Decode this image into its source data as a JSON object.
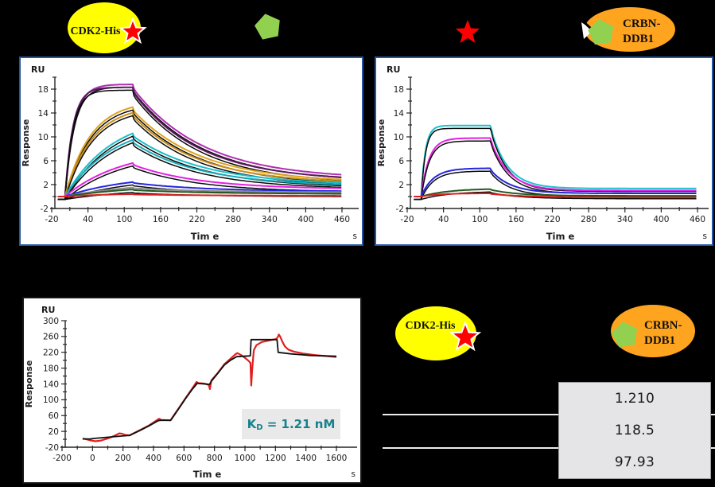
{
  "header": {
    "left_label": "CDK2-His",
    "right_line1": "CRBN-",
    "right_line2": "DDB1"
  },
  "footer": {
    "left_label": "CDK2-His",
    "right_line1": "CRBN-",
    "right_line2": "DDB1"
  },
  "kd": {
    "k": "K",
    "sub": "D",
    "rest": " = 1.21 nM"
  },
  "table": {
    "values": [
      "1.210",
      "118.5",
      "97.93"
    ]
  },
  "colors": {
    "ellipse_yellow": "#FFFF00",
    "ellipse_orange": "#FFA41E",
    "pentagon_green": "#92D050",
    "star_red": "#FF0000",
    "chart_border_blue": "#2456A4",
    "kd_teal": "#17828C",
    "table_gray": "#E5E4E6"
  },
  "chart_data": [
    {
      "id": "top-left",
      "type": "line",
      "description": "SPR multi-cycle sensorgram: analyte over CDK2-His surface, colored traces with black fits",
      "unit_label": "RU",
      "xlabel": "Tim e",
      "x_unit": "s",
      "ylabel": "Response",
      "xlim": [
        -20,
        460
      ],
      "ylim": [
        -2,
        20
      ],
      "xticks": [
        -20,
        40,
        100,
        160,
        220,
        280,
        340,
        400,
        460
      ],
      "xtick_minor": 30,
      "yticks": [
        -2,
        2,
        6,
        10,
        14,
        18
      ],
      "ytick_minor": 2,
      "t_on": 2,
      "t_off": 115,
      "series": [
        {
          "name": "conc-1a",
          "color": "#B02FB0",
          "model": "kinetic",
          "rmax": 18.8,
          "tau_on": 15,
          "drop": 0.7,
          "tau_off": 115,
          "end": 2.9,
          "fit": true
        },
        {
          "name": "conc-1b",
          "color": "#5A1A60",
          "model": "kinetic",
          "rmax": 18.3,
          "tau_on": 13,
          "drop": 0.9,
          "tau_off": 110,
          "end": 2.6,
          "fit": true
        },
        {
          "name": "conc-2a",
          "color": "#DFA321",
          "model": "kinetic",
          "rmax": 16.1,
          "tau_on": 42,
          "drop": 0.6,
          "tau_off": 112,
          "end": 2.3,
          "fit": true
        },
        {
          "name": "conc-2b",
          "color": "#C98F17",
          "model": "kinetic",
          "rmax": 15.3,
          "tau_on": 45,
          "drop": 0.6,
          "tau_off": 108,
          "end": 2.1,
          "fit": true
        },
        {
          "name": "conc-3a",
          "color": "#1CBECB",
          "model": "kinetic",
          "rmax": 13.9,
          "tau_on": 78,
          "drop": 0.5,
          "tau_off": 115,
          "end": 1.9,
          "fit": true
        },
        {
          "name": "conc-3b",
          "color": "#17ADBA",
          "model": "kinetic",
          "rmax": 12.6,
          "tau_on": 80,
          "drop": 0.5,
          "tau_off": 112,
          "end": 1.7,
          "fit": true
        },
        {
          "name": "conc-4",
          "color": "#E41FE4",
          "model": "kinetic",
          "rmax": 8.1,
          "tau_on": 95,
          "drop": 0.3,
          "tau_off": 110,
          "end": 1.2,
          "fit": true
        },
        {
          "name": "conc-5",
          "color": "#2525DE",
          "model": "kinetic",
          "rmax": 3.7,
          "tau_on": 105,
          "drop": 0.15,
          "tau_off": 115,
          "end": 0.85,
          "fit": true
        },
        {
          "name": "conc-6",
          "color": "#8C8C8C",
          "model": "kinetic",
          "rmax": 2.4,
          "tau_on": 115,
          "drop": 0.1,
          "tau_off": 120,
          "end": 0.7,
          "fit": false
        },
        {
          "name": "conc-7",
          "color": "#225A22",
          "model": "kinetic",
          "rmax": 2.0,
          "tau_on": 125,
          "drop": 0.1,
          "tau_off": 120,
          "end": 0.45,
          "fit": true
        },
        {
          "name": "conc-8",
          "color": "#DB2020",
          "model": "kinetic",
          "rmax": 0.5,
          "tau_on": 70,
          "drop": 0.05,
          "tau_off": 150,
          "end": 0.1,
          "fit": false
        }
      ]
    },
    {
      "id": "top-right",
      "type": "line",
      "description": "SPR multi-cycle sensorgram: analyte over CRBN-DDB1 surface, colored traces with black fits",
      "unit_label": "RU",
      "xlabel": "Tim e",
      "x_unit": "s",
      "ylabel": "Response",
      "xlim": [
        -20,
        460
      ],
      "ylim": [
        -2,
        20
      ],
      "xticks": [
        -20,
        40,
        100,
        160,
        220,
        280,
        340,
        400,
        460
      ],
      "xtick_minor": 30,
      "yticks": [
        -2,
        2,
        6,
        10,
        14,
        18
      ],
      "ytick_minor": 2,
      "t_on": 3,
      "t_off": 118,
      "series": [
        {
          "name": "conc-1",
          "color": "#1CC3CE",
          "model": "kinetic",
          "rmax": 11.9,
          "tau_on": 7,
          "drop": 0.4,
          "tau_off": 28,
          "end": 1.35,
          "fit": true
        },
        {
          "name": "conc-2",
          "color": "#E41FE4",
          "model": "kinetic",
          "rmax": 9.8,
          "tau_on": 13,
          "drop": 0.4,
          "tau_off": 30,
          "end": 1.0,
          "fit": true
        },
        {
          "name": "conc-3",
          "color": "#2525DE",
          "model": "kinetic",
          "rmax": 4.75,
          "tau_on": 20,
          "drop": 0.3,
          "tau_off": 33,
          "end": 0.55,
          "fit": true
        },
        {
          "name": "conc-4",
          "color": "#225A22",
          "model": "kinetic",
          "rmax": 1.35,
          "tau_on": 45,
          "drop": 0.1,
          "tau_off": 45,
          "end": 0.12,
          "fit": true
        },
        {
          "name": "conc-5",
          "color": "#DB2020",
          "model": "kinetic",
          "rmax": 0.55,
          "tau_on": 30,
          "drop": 0.1,
          "tau_off": 60,
          "end": -0.15,
          "fit": false
        }
      ]
    },
    {
      "id": "bottom-left",
      "type": "line",
      "description": "SPR single-cycle kinetics sensorgram, red data with black fit, KD = 1.21 nM",
      "unit_label": "RU",
      "xlabel": "Tim e",
      "x_unit": "s",
      "ylabel": "Response",
      "annotation": "KD = 1.21 nM",
      "xlim": [
        -200,
        1600
      ],
      "ylim": [
        -20,
        300
      ],
      "xticks": [
        -200,
        0,
        200,
        400,
        600,
        800,
        1000,
        1200,
        1400,
        1600
      ],
      "xtick_minor": 100,
      "yticks": [
        -20,
        20,
        60,
        100,
        140,
        180,
        220,
        260,
        300
      ],
      "ytick_minor": 20,
      "series": [
        {
          "name": "data",
          "color": "#E02020",
          "model": "points",
          "width": 2.2,
          "points": [
            [
              -65,
              2
            ],
            [
              -40,
              0
            ],
            [
              -10,
              -3
            ],
            [
              20,
              -5
            ],
            [
              55,
              -3
            ],
            [
              90,
              1
            ],
            [
              120,
              5
            ],
            [
              155,
              11
            ],
            [
              175,
              15
            ],
            [
              195,
              14
            ],
            [
              215,
              11
            ],
            [
              245,
              10
            ],
            [
              258,
              13
            ],
            [
              310,
              23
            ],
            [
              370,
              35
            ],
            [
              425,
              49
            ],
            [
              437,
              52
            ],
            [
              450,
              49
            ],
            [
              512,
              48
            ],
            [
              525,
              56
            ],
            [
              565,
              78
            ],
            [
              610,
              104
            ],
            [
              655,
              129
            ],
            [
              682,
              145
            ],
            [
              695,
              142
            ],
            [
              730,
              141
            ],
            [
              762,
              138
            ],
            [
              770,
              127
            ],
            [
              780,
              149
            ],
            [
              820,
              167
            ],
            [
              865,
              190
            ],
            [
              900,
              202
            ],
            [
              935,
              214
            ],
            [
              950,
              218
            ],
            [
              975,
              213
            ],
            [
              1000,
              206
            ],
            [
              1025,
              198
            ],
            [
              1036,
              193
            ],
            [
              1041,
              136
            ],
            [
              1047,
              175
            ],
            [
              1058,
              225
            ],
            [
              1075,
              238
            ],
            [
              1110,
              246
            ],
            [
              1160,
              250
            ],
            [
              1205,
              254
            ],
            [
              1215,
              258
            ],
            [
              1222,
              265
            ],
            [
              1232,
              259
            ],
            [
              1245,
              247
            ],
            [
              1262,
              235
            ],
            [
              1285,
              227
            ],
            [
              1320,
              222
            ],
            [
              1380,
              217
            ],
            [
              1460,
              213
            ],
            [
              1600,
              208
            ]
          ]
        },
        {
          "name": "fit",
          "color": "#0F0F0F",
          "model": "points",
          "width": 1.8,
          "points": [
            [
              -65,
              1
            ],
            [
              -10,
              1
            ],
            [
              0,
              2
            ],
            [
              60,
              4
            ],
            [
              120,
              6
            ],
            [
              180,
              8
            ],
            [
              245,
              10
            ],
            [
              255,
              12
            ],
            [
              310,
              22
            ],
            [
              370,
              34
            ],
            [
              430,
              47
            ],
            [
              445,
              48
            ],
            [
              512,
              48
            ],
            [
              522,
              53
            ],
            [
              565,
              77
            ],
            [
              610,
              103
            ],
            [
              655,
              127
            ],
            [
              688,
              142
            ],
            [
              700,
              141
            ],
            [
              768,
              139
            ],
            [
              778,
              146
            ],
            [
              820,
              166
            ],
            [
              865,
              188
            ],
            [
              905,
              200
            ],
            [
              945,
              209
            ],
            [
              990,
              210
            ],
            [
              1035,
              211
            ],
            [
              1040,
              252
            ],
            [
              1210,
              252
            ],
            [
              1218,
              220
            ],
            [
              1300,
              216
            ],
            [
              1430,
              212
            ],
            [
              1600,
              210
            ]
          ]
        }
      ]
    }
  ]
}
